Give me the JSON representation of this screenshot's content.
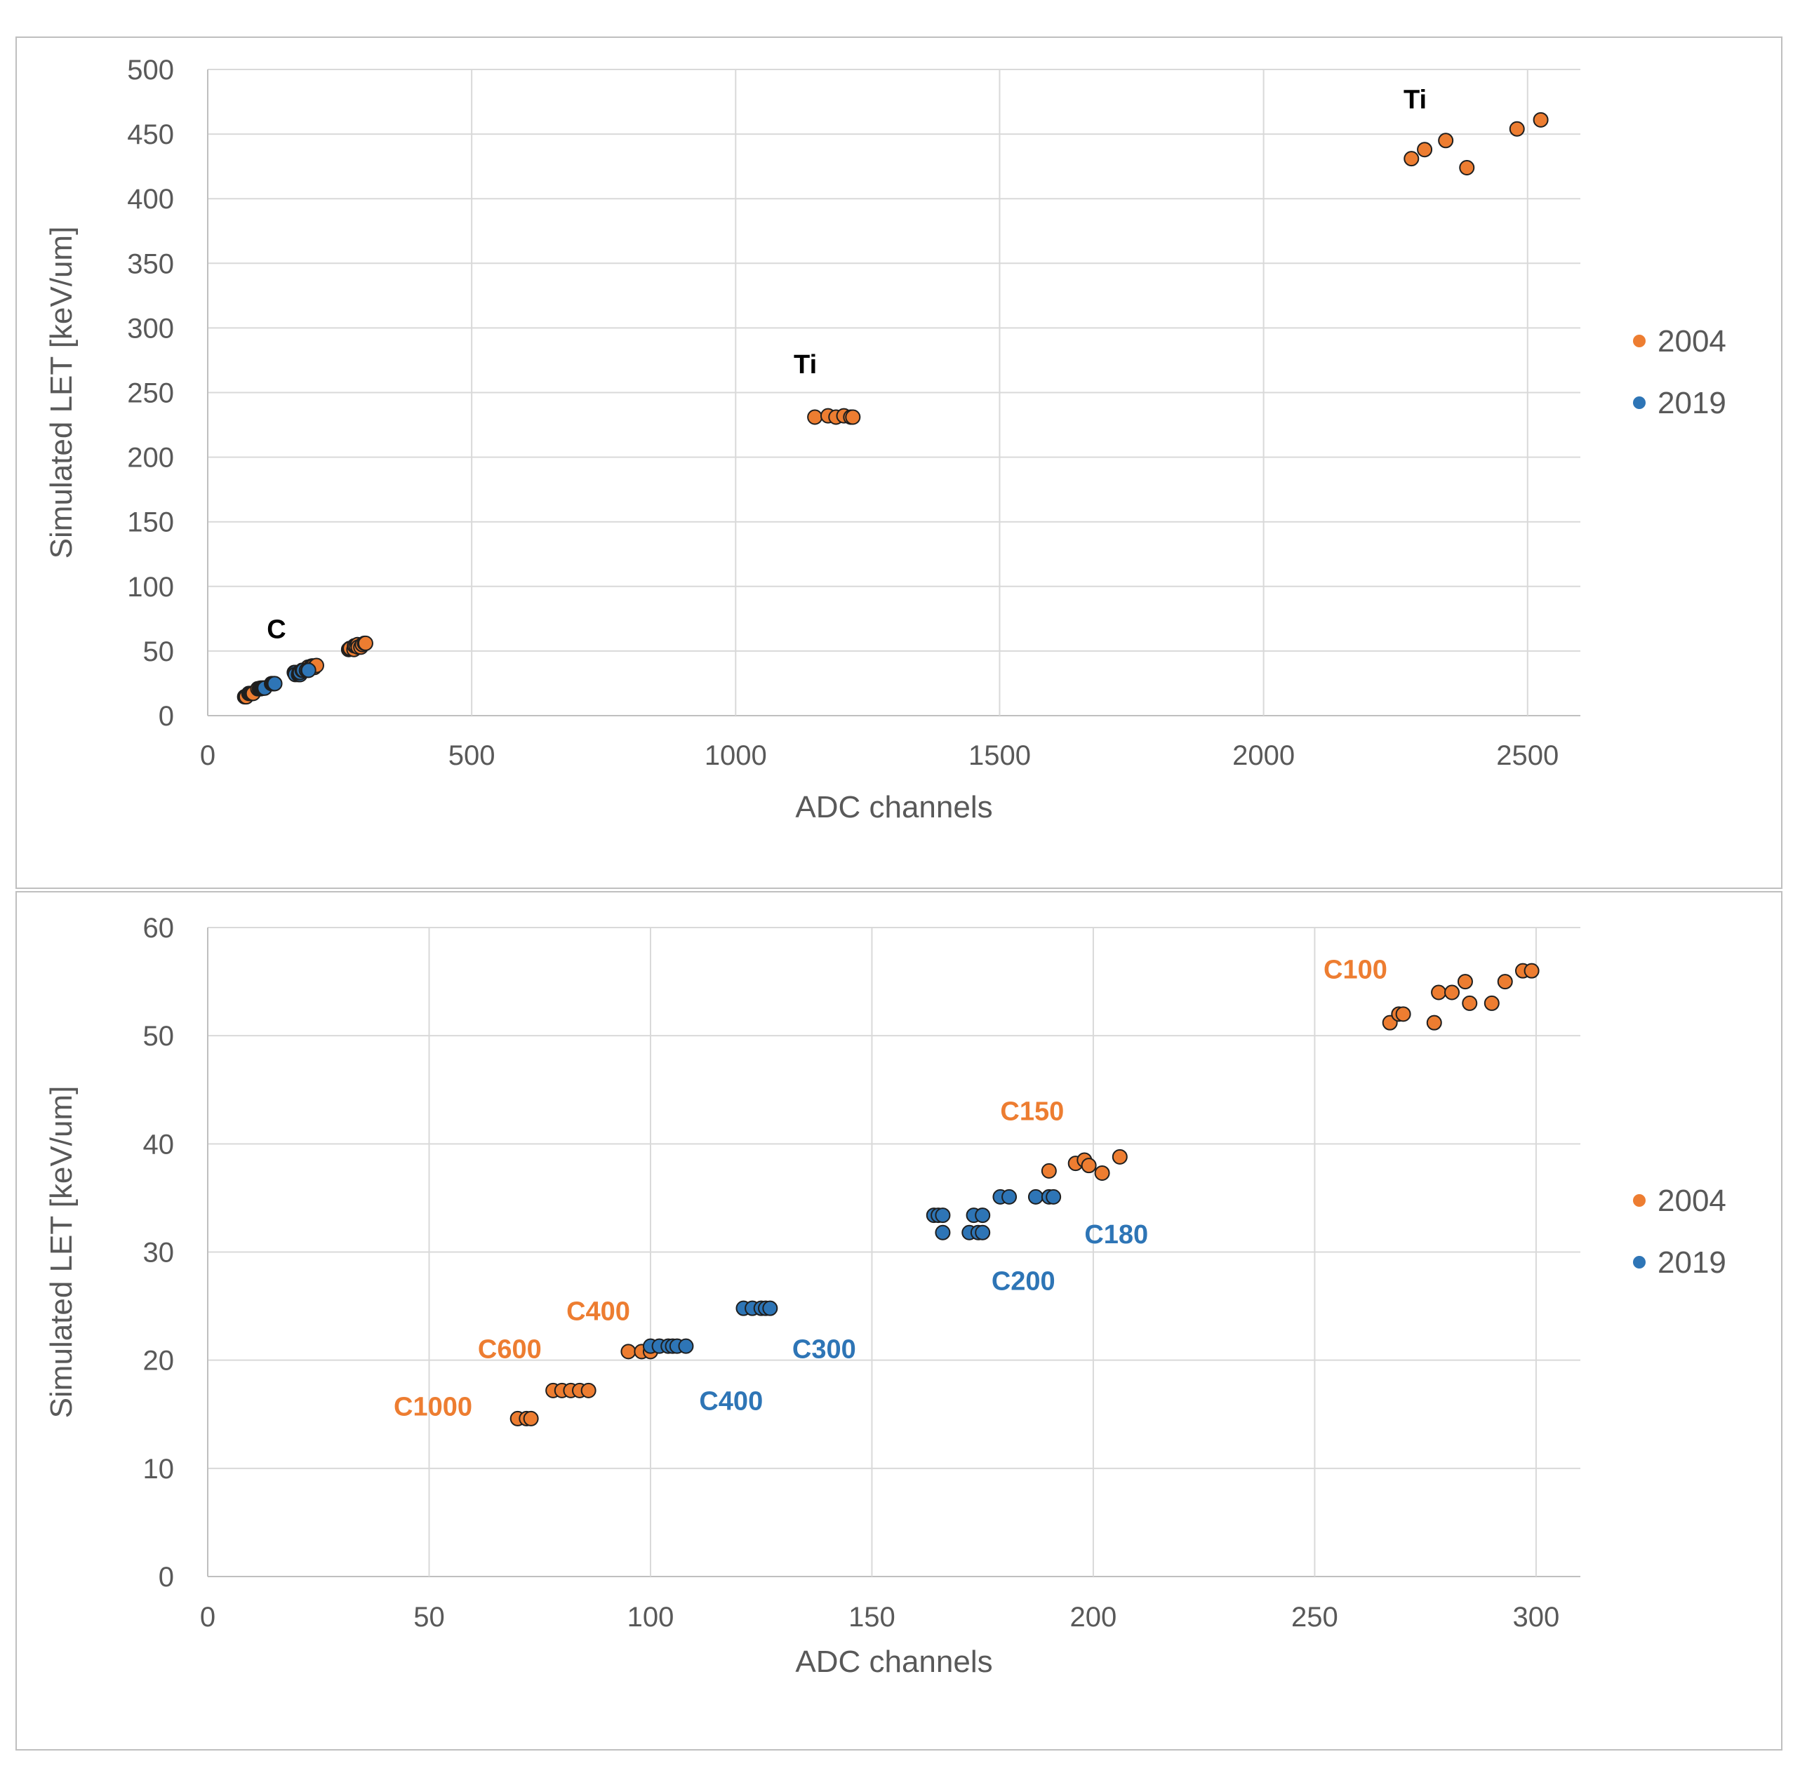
{
  "colors": {
    "s2004": "#ed7d31",
    "s2019": "#2e75b6",
    "marker_edge": "#1f1f1f",
    "black": "#000000"
  },
  "chart_data": [
    {
      "type": "scatter",
      "title": "",
      "xlabel": "ADC channels",
      "ylabel": "Simulated LET [keV/um]",
      "xlim": [
        0,
        2600
      ],
      "ylim": [
        0,
        500
      ],
      "xticks": [
        0,
        500,
        1000,
        1500,
        2000,
        2500
      ],
      "yticks": [
        0,
        50,
        100,
        150,
        200,
        250,
        300,
        350,
        400,
        450,
        500
      ],
      "grid": true,
      "legend_position": "right",
      "series": [
        {
          "name": "2004",
          "color": "#ed7d31",
          "points": [
            [
              70,
              14.6
            ],
            [
              72,
              14.6
            ],
            [
              73,
              14.6
            ],
            [
              78,
              17.2
            ],
            [
              80,
              17.2
            ],
            [
              82,
              17.2
            ],
            [
              84,
              17.2
            ],
            [
              86,
              17.2
            ],
            [
              95,
              20.8
            ],
            [
              98,
              20.8
            ],
            [
              100,
              20.8
            ],
            [
              190,
              37.5
            ],
            [
              196,
              38.2
            ],
            [
              198,
              38.5
            ],
            [
              199,
              38
            ],
            [
              202,
              37.3
            ],
            [
              206,
              38.8
            ],
            [
              267,
              51.2
            ],
            [
              269,
              52
            ],
            [
              270,
              52
            ],
            [
              277,
              51.2
            ],
            [
              278,
              54
            ],
            [
              281,
              54
            ],
            [
              284,
              55
            ],
            [
              285,
              53
            ],
            [
              290,
              53
            ],
            [
              293,
              55
            ],
            [
              297,
              56
            ],
            [
              299,
              56
            ],
            [
              1150,
              231
            ],
            [
              1175,
              232
            ],
            [
              1190,
              231
            ],
            [
              1205,
              232
            ],
            [
              1218,
              231
            ],
            [
              1222,
              231
            ],
            [
              2280,
              431
            ],
            [
              2305,
              438
            ],
            [
              2345,
              445
            ],
            [
              2385,
              424
            ],
            [
              2480,
              454
            ],
            [
              2525,
              461
            ]
          ]
        },
        {
          "name": "2019",
          "color": "#2e75b6",
          "points": [
            [
              100,
              21.3
            ],
            [
              102,
              21.3
            ],
            [
              104,
              21.3
            ],
            [
              105,
              21.3
            ],
            [
              106,
              21.3
            ],
            [
              108,
              21.3
            ],
            [
              121,
              24.8
            ],
            [
              123,
              24.8
            ],
            [
              125,
              24.8
            ],
            [
              126,
              24.8
            ],
            [
              127,
              24.8
            ],
            [
              164,
              33.4
            ],
            [
              165,
              33.4
            ],
            [
              166,
              33.4
            ],
            [
              166,
              31.8
            ],
            [
              172,
              31.8
            ],
            [
              174,
              31.8
            ],
            [
              175,
              31.8
            ],
            [
              173,
              33.4
            ],
            [
              175,
              33.4
            ],
            [
              179,
              35.1
            ],
            [
              181,
              35.1
            ],
            [
              187,
              35.1
            ],
            [
              190,
              35.1
            ],
            [
              191,
              35.1
            ]
          ]
        }
      ],
      "annotations": [
        {
          "text": "Ti",
          "x": 2265,
          "y": 470,
          "color": "#000000"
        },
        {
          "text": "Ti",
          "x": 1110,
          "y": 265,
          "color": "#000000"
        },
        {
          "text": "C",
          "x": 112,
          "y": 60,
          "color": "#000000"
        }
      ]
    },
    {
      "type": "scatter",
      "title": "",
      "xlabel": "ADC channels",
      "ylabel": "Simulated LET [keV/um]",
      "xlim": [
        0,
        310
      ],
      "ylim": [
        0,
        60
      ],
      "xticks": [
        0,
        50,
        100,
        150,
        200,
        250,
        300
      ],
      "yticks": [
        0,
        10,
        20,
        30,
        40,
        50,
        60
      ],
      "grid": true,
      "legend_position": "right",
      "series": [
        {
          "name": "2004",
          "color": "#ed7d31",
          "points": [
            [
              70,
              14.6
            ],
            [
              72,
              14.6
            ],
            [
              73,
              14.6
            ],
            [
              78,
              17.2
            ],
            [
              80,
              17.2
            ],
            [
              82,
              17.2
            ],
            [
              84,
              17.2
            ],
            [
              86,
              17.2
            ],
            [
              95,
              20.8
            ],
            [
              98,
              20.8
            ],
            [
              100,
              20.8
            ],
            [
              190,
              37.5
            ],
            [
              196,
              38.2
            ],
            [
              198,
              38.5
            ],
            [
              199,
              38
            ],
            [
              202,
              37.3
            ],
            [
              206,
              38.8
            ],
            [
              267,
              51.2
            ],
            [
              269,
              52
            ],
            [
              270,
              52
            ],
            [
              277,
              51.2
            ],
            [
              278,
              54
            ],
            [
              281,
              54
            ],
            [
              284,
              55
            ],
            [
              285,
              53
            ],
            [
              290,
              53
            ],
            [
              293,
              55
            ],
            [
              297,
              56
            ],
            [
              299,
              56
            ]
          ]
        },
        {
          "name": "2019",
          "color": "#2e75b6",
          "points": [
            [
              100,
              21.3
            ],
            [
              102,
              21.3
            ],
            [
              104,
              21.3
            ],
            [
              105,
              21.3
            ],
            [
              106,
              21.3
            ],
            [
              108,
              21.3
            ],
            [
              121,
              24.8
            ],
            [
              123,
              24.8
            ],
            [
              125,
              24.8
            ],
            [
              126,
              24.8
            ],
            [
              127,
              24.8
            ],
            [
              164,
              33.4
            ],
            [
              165,
              33.4
            ],
            [
              166,
              33.4
            ],
            [
              166,
              31.8
            ],
            [
              172,
              31.8
            ],
            [
              174,
              31.8
            ],
            [
              175,
              31.8
            ],
            [
              173,
              33.4
            ],
            [
              175,
              33.4
            ],
            [
              179,
              35.1
            ],
            [
              181,
              35.1
            ],
            [
              187,
              35.1
            ],
            [
              190,
              35.1
            ],
            [
              191,
              35.1
            ]
          ]
        }
      ],
      "annotations": [
        {
          "text": "C100",
          "x": 252,
          "y": 55.3,
          "color": "#ed7d31"
        },
        {
          "text": "C150",
          "x": 179,
          "y": 42.2,
          "color": "#ed7d31"
        },
        {
          "text": "C180",
          "x": 198,
          "y": 30.8,
          "color": "#2e75b6"
        },
        {
          "text": "C200",
          "x": 177,
          "y": 26.5,
          "color": "#2e75b6"
        },
        {
          "text": "C300",
          "x": 132,
          "y": 20.2,
          "color": "#2e75b6"
        },
        {
          "text": "C400",
          "x": 81,
          "y": 23.7,
          "color": "#ed7d31"
        },
        {
          "text": "C400",
          "x": 111,
          "y": 15.4,
          "color": "#2e75b6"
        },
        {
          "text": "C600",
          "x": 61,
          "y": 20.2,
          "color": "#ed7d31"
        },
        {
          "text": "C1000",
          "x": 42,
          "y": 14.9,
          "color": "#ed7d31"
        }
      ]
    }
  ]
}
